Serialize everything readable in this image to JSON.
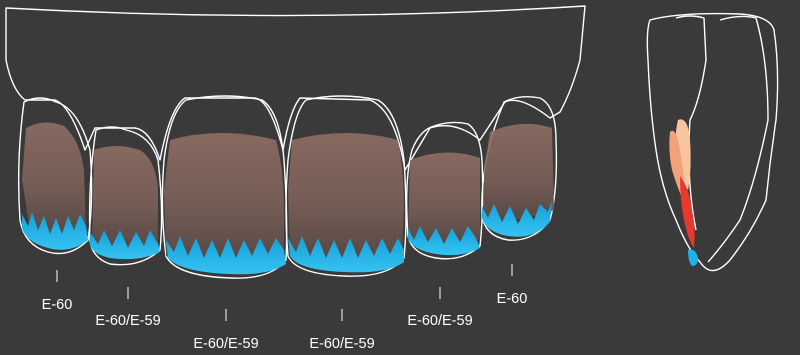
{
  "colors": {
    "background": "#3a3a3a",
    "outline": "#ffffff",
    "dentin": "#8a6a60",
    "dentin_dark": "#5e4c47",
    "enamel_blue": "#1ab4ec",
    "enamel_light_blue": "#7dd8f5",
    "mamelon_red": "#e53a2d",
    "mamelon_orange": "#f2a27a",
    "mamelon_peach": "#f8c59e"
  },
  "labels": [
    {
      "id": "tooth-1",
      "text": "E-60"
    },
    {
      "id": "tooth-2",
      "text": "E-60/E-59"
    },
    {
      "id": "tooth-3",
      "text": "E-60/E-59"
    },
    {
      "id": "tooth-4",
      "text": "E-60/E-59"
    },
    {
      "id": "tooth-5",
      "text": "E-60/E-59"
    },
    {
      "id": "tooth-6",
      "text": "E-60"
    }
  ]
}
